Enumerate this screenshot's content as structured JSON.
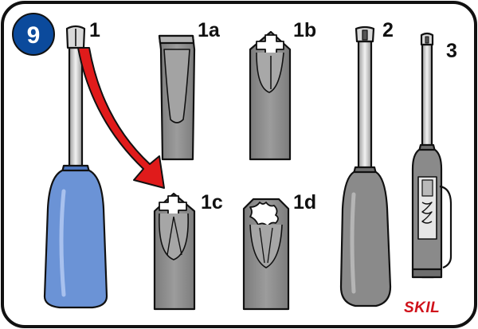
{
  "step_number": "9",
  "labels": {
    "tool_1": "1",
    "tip_1a": "1a",
    "tip_1b": "1b",
    "tip_1c": "1c",
    "tip_1d": "1d",
    "tool_2": "2",
    "tool_3": "3"
  },
  "brand": "SKIL",
  "icons": [
    "screwdriver-blue-handle",
    "flat-tip",
    "phillips-tip",
    "pozidriv-tip",
    "torx-tip",
    "screwdriver-grey-handle",
    "voltage-tester-screwdriver",
    "red-arrow"
  ],
  "colors": {
    "badge": "#0b4a9c",
    "blue_handle": "#6b93d6",
    "grey": "#8a8a8a",
    "dark_grey": "#6e6e6e",
    "arrow": "#e01b1b",
    "brand": "#d0121b"
  }
}
